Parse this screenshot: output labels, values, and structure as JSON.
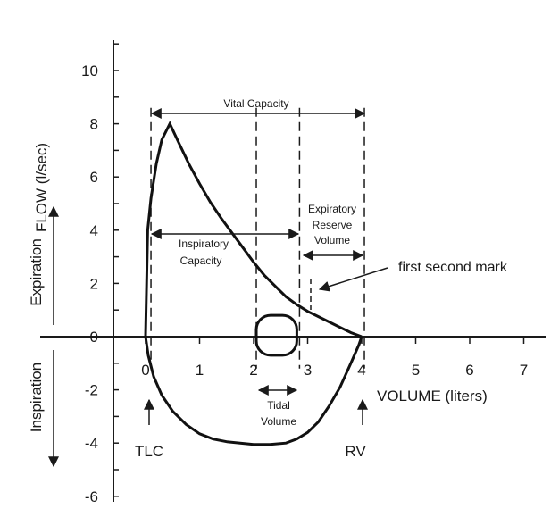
{
  "chart_data": {
    "type": "line",
    "x_axis": {
      "label": "VOLUME (liters)",
      "ticks": [
        "0",
        "1",
        "2",
        "3",
        "4",
        "5",
        "6",
        "7"
      ],
      "range": [
        -0.2,
        7.4
      ]
    },
    "y_axis": {
      "label": "FLOW (l/sec)",
      "ticks": [
        "10",
        "8",
        "6",
        "4",
        "2",
        "0",
        "-2",
        "-4",
        "-6"
      ],
      "range": [
        -6.3,
        11.5
      ]
    },
    "side_labels": {
      "upper": "Expiration",
      "lower": "Inspiration"
    },
    "series": [
      {
        "values_x": [
          0,
          0.04,
          0.1,
          0.2,
          0.3,
          0.45,
          0.6,
          0.8,
          1.0,
          1.2,
          1.4,
          1.6,
          1.8,
          2.0,
          2.2,
          2.4,
          2.6,
          2.8,
          3.0,
          3.2,
          3.4,
          3.6,
          3.8,
          4.0
        ],
        "values_y": [
          0,
          4.0,
          5.2,
          6.5,
          7.4,
          8.0,
          7.35,
          6.5,
          5.75,
          5.05,
          4.45,
          3.9,
          3.35,
          2.8,
          2.3,
          1.9,
          1.5,
          1.2,
          0.95,
          0.75,
          0.55,
          0.35,
          0.15,
          0
        ]
      },
      {
        "values_x": [
          0,
          0.05,
          0.15,
          0.3,
          0.5,
          0.75,
          1.0,
          1.25,
          1.5,
          1.75,
          2.0,
          2.3,
          2.6,
          2.8,
          3.0,
          3.2,
          3.4,
          3.6,
          3.8,
          3.95,
          4.0
        ],
        "values_y": [
          0,
          -0.7,
          -1.5,
          -2.2,
          -2.8,
          -3.3,
          -3.65,
          -3.85,
          -3.95,
          -4.0,
          -4.05,
          -4.05,
          -4.0,
          -3.85,
          -3.6,
          -3.2,
          -2.6,
          -1.9,
          -1.0,
          -0.3,
          0
        ]
      }
    ],
    "tidal_loop": {
      "x_range": [
        2.05,
        2.8
      ],
      "y_range": [
        -0.7,
        0.8
      ]
    },
    "dashed_lines_x": [
      0.1,
      2.05,
      2.85,
      4.05
    ],
    "annotations": {
      "vital_capacity": "Vital Capacity",
      "inspiratory_capacity": [
        "Inspiratory",
        "Capacity"
      ],
      "expiratory_reserve_volume": [
        "Expiratory",
        "Reserve",
        "Volume"
      ],
      "tidal_volume": [
        "Tidal",
        "Volume"
      ],
      "first_second_mark": "first second mark",
      "tlc": "TLC",
      "rv": "RV"
    },
    "grid": false
  }
}
